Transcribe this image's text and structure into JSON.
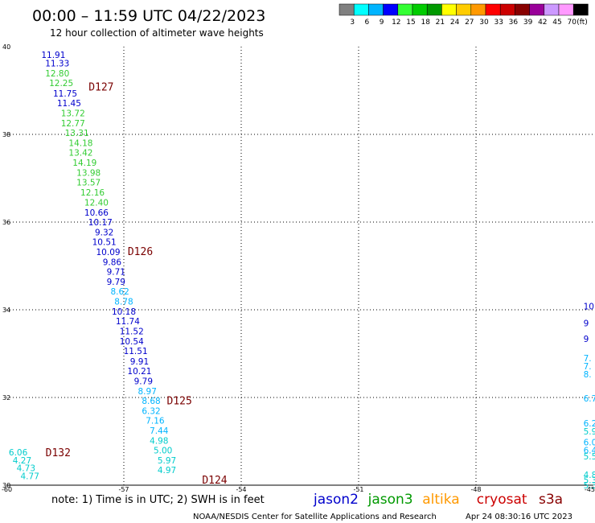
{
  "header": {
    "title": "00:00 – 11:59 UTC 04/22/2023",
    "subtitle": "12 hour collection of altimeter wave heights"
  },
  "scale": {
    "colors": [
      "#808080",
      "#00ffff",
      "#00b4ff",
      "#0000ff",
      "#33ff33",
      "#00cc00",
      "#009900",
      "#ffff00",
      "#ffcc00",
      "#ff9900",
      "#ff0000",
      "#cc0000",
      "#880000",
      "#990099",
      "#cc99ff",
      "#ff99ff",
      "#000000"
    ],
    "labels": [
      "3",
      "6",
      "9",
      "12",
      "15",
      "18",
      "21",
      "24",
      "27",
      "30",
      "33",
      "36",
      "39",
      "42",
      "45",
      "70",
      "(ft)"
    ]
  },
  "footer": {
    "note": "note: 1) Time is in UTC; 2) SWH is in feet",
    "satellites": [
      {
        "name": "jason2",
        "color": "#0000cc"
      },
      {
        "name": "jason3",
        "color": "#009900"
      },
      {
        "name": "altika",
        "color": "#ff9900"
      },
      {
        "name": "cryosat",
        "color": "#cc0000"
      },
      {
        "name": "s3a",
        "color": "#880000"
      }
    ],
    "credit": "NOAA/NESDIS Center for Satellite Applications and Research",
    "timestamp": "Apr 24 08:30:16 UTC 2023"
  },
  "chart_data": {
    "type": "scatter",
    "xlim": [
      -60,
      -45
    ],
    "ylim": [
      30,
      40
    ],
    "x_ticks": [
      "-60",
      "-57",
      "-54",
      "-51",
      "-48",
      "-45"
    ],
    "y_ticks": [
      "30",
      "32",
      "34",
      "36",
      "38",
      "40"
    ],
    "grid": true,
    "passes": [
      {
        "label": "D127",
        "lon": -57.9,
        "lat": 39.09,
        "color": "#7a0000"
      },
      {
        "label": "D126",
        "lon": -56.9,
        "lat": 35.34,
        "color": "#7a0000"
      },
      {
        "label": "D125",
        "lon": -55.9,
        "lat": 31.94,
        "color": "#7a0000"
      },
      {
        "label": "D124",
        "lon": -55.0,
        "lat": 30.13,
        "color": "#7a0000"
      },
      {
        "label": "D132",
        "lon": -59.0,
        "lat": 30.75,
        "color": "#007a00"
      }
    ],
    "points": [
      {
        "lon": -58.8,
        "lat": 39.82,
        "swh": "11.91",
        "color": "#0000cc"
      },
      {
        "lon": -58.7,
        "lat": 39.62,
        "swh": "11.33",
        "color": "#0000cc"
      },
      {
        "lon": -58.7,
        "lat": 39.39,
        "swh": "12.80",
        "color": "#33cc33"
      },
      {
        "lon": -58.6,
        "lat": 39.17,
        "swh": "12.25",
        "color": "#33cc33"
      },
      {
        "lon": -58.5,
        "lat": 38.94,
        "swh": "11.75",
        "color": "#0000cc"
      },
      {
        "lon": -58.4,
        "lat": 38.72,
        "swh": "11.45",
        "color": "#0000cc"
      },
      {
        "lon": -58.3,
        "lat": 38.49,
        "swh": "13.72",
        "color": "#33cc33"
      },
      {
        "lon": -58.3,
        "lat": 38.26,
        "swh": "12.77",
        "color": "#33cc33"
      },
      {
        "lon": -58.2,
        "lat": 38.04,
        "swh": "13.31",
        "color": "#33cc33"
      },
      {
        "lon": -58.1,
        "lat": 37.81,
        "swh": "14.18",
        "color": "#33cc33"
      },
      {
        "lon": -58.1,
        "lat": 37.59,
        "swh": "13.42",
        "color": "#33cc33"
      },
      {
        "lon": -58.0,
        "lat": 37.36,
        "swh": "14.19",
        "color": "#33cc33"
      },
      {
        "lon": -57.9,
        "lat": 37.13,
        "swh": "13.98",
        "color": "#33cc33"
      },
      {
        "lon": -57.9,
        "lat": 36.91,
        "swh": "13.57",
        "color": "#33cc33"
      },
      {
        "lon": -57.8,
        "lat": 36.68,
        "swh": "12.16",
        "color": "#33cc33"
      },
      {
        "lon": -57.7,
        "lat": 36.45,
        "swh": "12.40",
        "color": "#33cc33"
      },
      {
        "lon": -57.7,
        "lat": 36.22,
        "swh": "10.66",
        "color": "#0000cc"
      },
      {
        "lon": -57.6,
        "lat": 36.0,
        "swh": "10.17",
        "color": "#0000cc"
      },
      {
        "lon": -57.5,
        "lat": 35.77,
        "swh": "9.32",
        "color": "#0000cc"
      },
      {
        "lon": -57.5,
        "lat": 35.55,
        "swh": "10.51",
        "color": "#0000cc"
      },
      {
        "lon": -57.4,
        "lat": 35.32,
        "swh": "10.09",
        "color": "#0000cc"
      },
      {
        "lon": -57.3,
        "lat": 35.09,
        "swh": "9.86",
        "color": "#0000cc"
      },
      {
        "lon": -57.2,
        "lat": 34.87,
        "swh": "9.71",
        "color": "#0000cc"
      },
      {
        "lon": -57.2,
        "lat": 34.64,
        "swh": "9.79",
        "color": "#0000cc"
      },
      {
        "lon": -57.1,
        "lat": 34.42,
        "swh": "8.62",
        "color": "#00b4ff"
      },
      {
        "lon": -57.0,
        "lat": 34.19,
        "swh": "8.78",
        "color": "#00b4ff"
      },
      {
        "lon": -57.0,
        "lat": 33.96,
        "swh": "10.18",
        "color": "#0000cc"
      },
      {
        "lon": -56.9,
        "lat": 33.74,
        "swh": "11.74",
        "color": "#0000cc"
      },
      {
        "lon": -56.8,
        "lat": 33.51,
        "swh": "11.52",
        "color": "#0000cc"
      },
      {
        "lon": -56.8,
        "lat": 33.28,
        "swh": "10.54",
        "color": "#0000cc"
      },
      {
        "lon": -56.7,
        "lat": 33.06,
        "swh": "11.51",
        "color": "#0000cc"
      },
      {
        "lon": -56.6,
        "lat": 32.83,
        "swh": "9.91",
        "color": "#0000cc"
      },
      {
        "lon": -56.6,
        "lat": 32.61,
        "swh": "10.21",
        "color": "#0000cc"
      },
      {
        "lon": -56.5,
        "lat": 32.38,
        "swh": "9.79",
        "color": "#0000cc"
      },
      {
        "lon": -56.4,
        "lat": 32.15,
        "swh": "8.97",
        "color": "#00b4ff"
      },
      {
        "lon": -56.3,
        "lat": 31.93,
        "swh": "8.68",
        "color": "#00b4ff"
      },
      {
        "lon": -56.3,
        "lat": 31.7,
        "swh": "6.32",
        "color": "#00b4ff"
      },
      {
        "lon": -56.2,
        "lat": 31.48,
        "swh": "7.16",
        "color": "#00b4ff"
      },
      {
        "lon": -56.1,
        "lat": 31.25,
        "swh": "7.44",
        "color": "#00b4ff"
      },
      {
        "lon": -56.1,
        "lat": 31.02,
        "swh": "4.98",
        "color": "#00cccc"
      },
      {
        "lon": -56.0,
        "lat": 30.8,
        "swh": "5.00",
        "color": "#00cccc"
      },
      {
        "lon": -55.9,
        "lat": 30.57,
        "swh": "5.97",
        "color": "#00cccc"
      },
      {
        "lon": -55.9,
        "lat": 30.35,
        "swh": "4.97",
        "color": "#00cccc"
      },
      {
        "lon": -59.7,
        "lat": 30.75,
        "swh": "6.06",
        "color": "#00cccc"
      },
      {
        "lon": -59.6,
        "lat": 30.57,
        "swh": "4.27",
        "color": "#00cccc"
      },
      {
        "lon": -59.5,
        "lat": 30.39,
        "swh": "4.73",
        "color": "#00cccc"
      },
      {
        "lon": -59.4,
        "lat": 30.21,
        "swh": "4.77",
        "color": "#00cccc"
      }
    ],
    "edge_points": [
      {
        "lon": -45.05,
        "lat": 34.08,
        "swh": "10",
        "color": "#0000cc"
      },
      {
        "lon": -45.05,
        "lat": 33.7,
        "swh": "9",
        "color": "#0000cc"
      },
      {
        "lon": -45.05,
        "lat": 33.34,
        "swh": "9",
        "color": "#0000cc"
      },
      {
        "lon": -45.05,
        "lat": 32.9,
        "swh": "7.",
        "color": "#00b4ff"
      },
      {
        "lon": -45.05,
        "lat": 32.72,
        "swh": "7.",
        "color": "#00b4ff"
      },
      {
        "lon": -45.05,
        "lat": 32.53,
        "swh": "8.",
        "color": "#00b4ff"
      },
      {
        "lon": -45.05,
        "lat": 31.98,
        "swh": "6.7",
        "color": "#00b4ff"
      },
      {
        "lon": -45.05,
        "lat": 31.41,
        "swh": "6.2",
        "color": "#00b4ff"
      },
      {
        "lon": -45.05,
        "lat": 31.23,
        "swh": "5.9",
        "color": "#00cccc"
      },
      {
        "lon": -45.05,
        "lat": 30.98,
        "swh": "6.0",
        "color": "#00b4ff"
      },
      {
        "lon": -45.05,
        "lat": 30.8,
        "swh": "6.4",
        "color": "#00b4ff"
      },
      {
        "lon": -45.05,
        "lat": 30.66,
        "swh": "5.5",
        "color": "#00cccc"
      },
      {
        "lon": -45.05,
        "lat": 30.24,
        "swh": "4.8",
        "color": "#00cccc"
      },
      {
        "lon": -45.05,
        "lat": 30.12,
        "swh": "5.3",
        "color": "#00cccc"
      },
      {
        "lon": -45.05,
        "lat": 30.0,
        "swh": "5.3",
        "color": "#00cccc"
      }
    ]
  }
}
